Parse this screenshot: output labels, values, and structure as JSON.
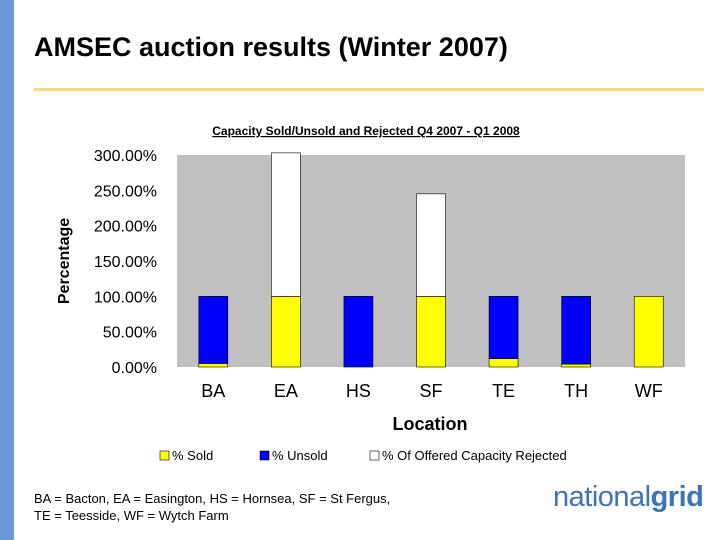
{
  "slide": {
    "title": "AMSEC auction results (Winter 2007)",
    "footnote_line1": "BA = Bacton, EA = Easington, HS = Hornsea, SF = St Fergus,",
    "footnote_line2": "TE = Teesside, WF = Wytch Farm",
    "logo_part1": "national",
    "logo_part2": "grid"
  },
  "colors": {
    "sold": "#ffff00",
    "unsold": "#0000ff",
    "rejected": "#ffffff",
    "plot_bg": "#c0c0c0",
    "logo": "#3b74b8",
    "sidebar": "#6a9ad6"
  },
  "chart_data": {
    "type": "bar",
    "stacked": true,
    "title": "Capacity Sold/Unsold and Rejected Q4 2007 - Q1 2008",
    "xlabel": "Location",
    "ylabel": "Percentage",
    "categories": [
      "BA",
      "EA",
      "HS",
      "SF",
      "TE",
      "TH",
      "WF"
    ],
    "ylim": [
      0,
      3
    ],
    "yticks": [
      "0.00%",
      "50.00%",
      "100.00%",
      "150.00%",
      "200.00%",
      "250.00%",
      "300.00%"
    ],
    "grid": false,
    "legend_position": "bottom",
    "series": [
      {
        "name": "% Sold",
        "color": "#ffff00",
        "values": [
          0.05,
          1.0,
          0.0,
          1.0,
          0.12,
          0.04,
          1.0
        ]
      },
      {
        "name": "% Unsold",
        "color": "#0000ff",
        "values": [
          0.95,
          0.0,
          1.0,
          0.0,
          0.88,
          0.96,
          0.0
        ]
      },
      {
        "name": "% Of Offered Capacity Rejected",
        "color": "#ffffff",
        "values": [
          0.0,
          2.03,
          0.0,
          1.45,
          0.0,
          0.0,
          0.0
        ]
      }
    ]
  }
}
